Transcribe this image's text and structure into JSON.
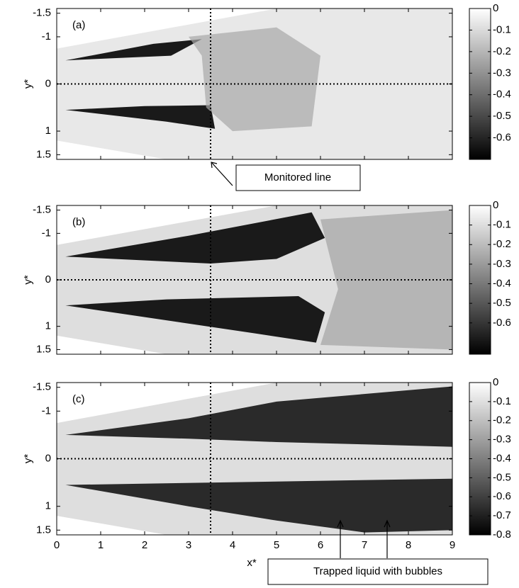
{
  "chart_data": [
    {
      "type": "image",
      "label": "(a)",
      "ylabel": "y*",
      "xlim": [
        0,
        9
      ],
      "ylim": [
        -1.6,
        1.6
      ],
      "y_inverted": true,
      "xticks": [
        0,
        1,
        2,
        3,
        4,
        5,
        6,
        7,
        8,
        9
      ],
      "xtick_labels": false,
      "yticks": [
        -1.5,
        -1,
        0,
        1,
        1.5
      ],
      "reference_lines": {
        "x": 3.5,
        "y": 0
      },
      "clim": [
        -0.7,
        0
      ],
      "cticks": [
        0,
        -0.1,
        -0.2,
        -0.3,
        -0.4,
        -0.5,
        -0.6
      ],
      "annotation": "Monitored line"
    },
    {
      "type": "image",
      "label": "(b)",
      "ylabel": "y*",
      "xlim": [
        0,
        9
      ],
      "ylim": [
        -1.6,
        1.6
      ],
      "y_inverted": true,
      "xticks": [
        0,
        1,
        2,
        3,
        4,
        5,
        6,
        7,
        8,
        9
      ],
      "xtick_labels": false,
      "yticks": [
        -1.5,
        -1,
        0,
        1,
        1.5
      ],
      "reference_lines": {
        "x": 3.5,
        "y": 0
      },
      "clim": [
        -0.76,
        0
      ],
      "cticks": [
        0,
        -0.1,
        -0.2,
        -0.3,
        -0.4,
        -0.5,
        -0.6
      ]
    },
    {
      "type": "image",
      "label": "(c)",
      "ylabel": "y*",
      "xlabel": "x*",
      "xlim": [
        0,
        9
      ],
      "ylim": [
        -1.6,
        1.6
      ],
      "y_inverted": true,
      "xticks": [
        0,
        1,
        2,
        3,
        4,
        5,
        6,
        7,
        8,
        9
      ],
      "xtick_labels": true,
      "yticks": [
        -1.5,
        -1,
        0,
        1,
        1.5
      ],
      "reference_lines": {
        "x": 3.5,
        "y": 0
      },
      "clim": [
        -0.8,
        0
      ],
      "cticks": [
        0,
        -0.1,
        -0.2,
        -0.3,
        -0.4,
        -0.5,
        -0.6,
        -0.7,
        -0.8
      ],
      "annotation": "Trapped liquid with bubbles"
    }
  ]
}
